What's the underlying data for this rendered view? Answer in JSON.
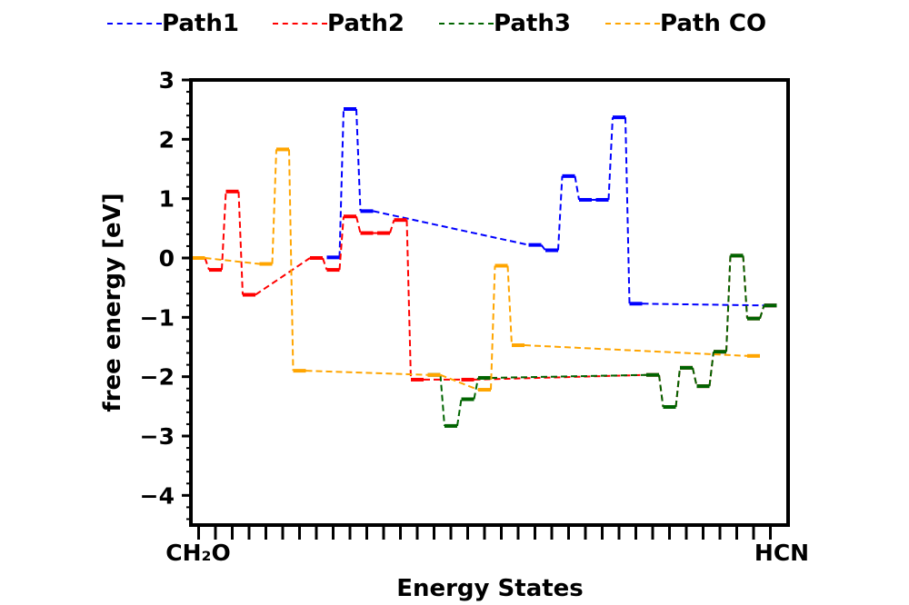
{
  "chart_data": {
    "type": "line",
    "title": "",
    "xlabel": "Energy States",
    "ylabel": "free energy [eV]",
    "x_tick_labels": {
      "first": "CH₂O",
      "last": "HCN"
    },
    "x_tick_count": 35,
    "ylim": [
      -4.5,
      3
    ],
    "yticks": [
      3,
      2,
      1,
      0,
      -1,
      -2,
      -3,
      -4
    ],
    "ytick_labels": [
      "3",
      "2",
      "1",
      "0",
      "−1",
      "−2",
      "−3",
      "−4"
    ],
    "legend_position": "top",
    "grid": false,
    "series": [
      {
        "name": "Path1",
        "color": "#0000ff",
        "style": "dashed",
        "points": [
          [
            8,
            0.01
          ],
          [
            9,
            2.51
          ],
          [
            10,
            0.79
          ],
          [
            20,
            0.22
          ],
          [
            21,
            0.13
          ],
          [
            22,
            1.38
          ],
          [
            23,
            0.98
          ],
          [
            24,
            0.98
          ],
          [
            25,
            2.37
          ],
          [
            26,
            -0.77
          ],
          [
            34,
            -0.8
          ]
        ]
      },
      {
        "name": "Path2",
        "color": "#ff0000",
        "style": "dashed",
        "points": [
          [
            0,
            0.0
          ],
          [
            1,
            -0.2
          ],
          [
            2,
            1.12
          ],
          [
            3,
            -0.62
          ],
          [
            7,
            0.0
          ],
          [
            8,
            -0.2
          ],
          [
            9,
            0.7
          ],
          [
            10,
            0.42
          ],
          [
            11,
            0.42
          ],
          [
            12,
            0.64
          ],
          [
            13,
            -2.05
          ],
          [
            16,
            -2.05
          ],
          [
            27,
            -1.97
          ],
          [
            28,
            -2.51
          ],
          [
            29,
            -1.85
          ],
          [
            30,
            -2.16
          ],
          [
            31,
            -1.58
          ],
          [
            32,
            0.04
          ],
          [
            33,
            -1.02
          ],
          [
            34,
            -0.8
          ]
        ]
      },
      {
        "name": "Path3",
        "color": "#006400",
        "style": "dashed",
        "points": [
          [
            14,
            -1.97
          ],
          [
            15,
            -2.83
          ],
          [
            16,
            -2.38
          ],
          [
            17,
            -2.02
          ],
          [
            27,
            -1.97
          ],
          [
            28,
            -2.51
          ],
          [
            29,
            -1.85
          ],
          [
            30,
            -2.16
          ],
          [
            31,
            -1.58
          ],
          [
            32,
            0.04
          ],
          [
            33,
            -1.02
          ],
          [
            34,
            -0.8
          ]
        ]
      },
      {
        "name": "Path CO",
        "color": "#ffa500",
        "style": "dashed",
        "points": [
          [
            0,
            0.0
          ],
          [
            4,
            -0.1
          ],
          [
            5,
            1.83
          ],
          [
            6,
            -1.9
          ],
          [
            14,
            -1.97
          ],
          [
            17,
            -2.22
          ],
          [
            18,
            -0.13
          ],
          [
            19,
            -1.47
          ],
          [
            33,
            -1.65
          ]
        ]
      }
    ]
  }
}
